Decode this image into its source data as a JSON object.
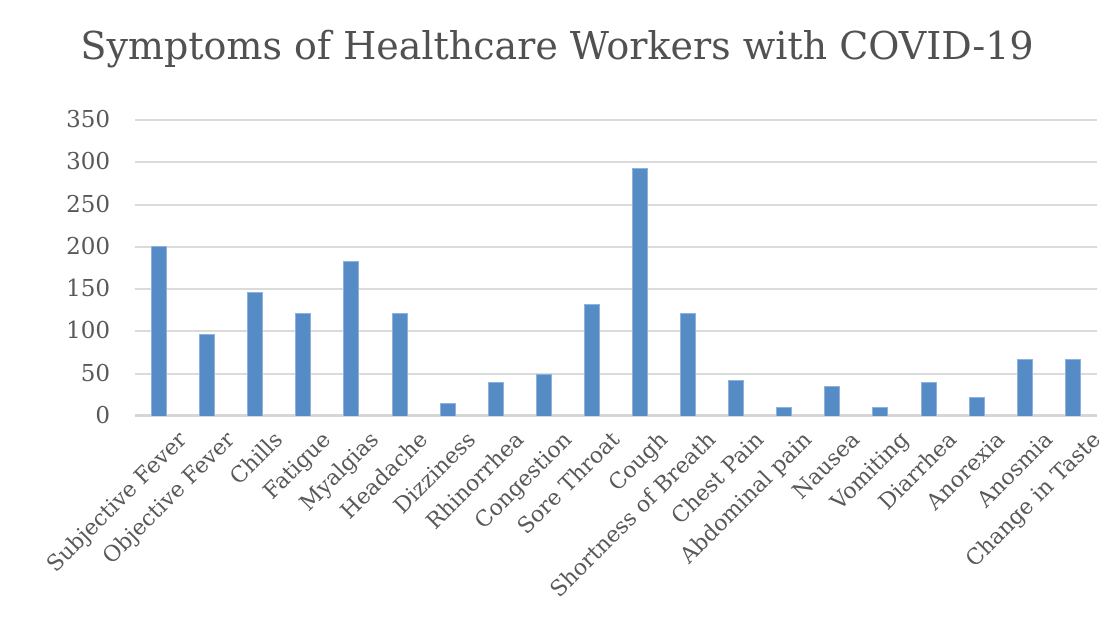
{
  "chart_data": {
    "type": "bar",
    "title": "Symptoms of Healthcare Workers with COVID-19",
    "xlabel": "",
    "ylabel": "",
    "categories": [
      "Subjective Fever",
      "Objective Fever",
      "Chills",
      "Fatigue",
      "Myalgias",
      "Headache",
      "Dizziness",
      "Rhinorrhea",
      "Congestion",
      "Sore Throat",
      "Cough",
      "Shortness of Breath",
      "Chest Pain",
      "Abdominal pain",
      "Nausea",
      "Vomiting",
      "Diarrhea",
      "Anorexia",
      "Anosmia",
      "Change in Taste"
    ],
    "values": [
      201,
      97,
      147,
      122,
      183,
      122,
      15,
      40,
      50,
      133,
      293,
      122,
      43,
      11,
      36,
      11,
      40,
      22,
      68,
      68
    ],
    "ylim": [
      0,
      350
    ],
    "yticks": [
      0,
      50,
      100,
      150,
      200,
      250,
      300,
      350
    ],
    "grid": "horizontal",
    "legend": "none",
    "x_label_rotation_deg": -45,
    "colors": {
      "bar_fill": "#558cc6",
      "bar_border": "#8fb2dc",
      "gridline": "#dbdbdb",
      "axis_line": "#d6d6d6",
      "tick_text": "#595959",
      "title_text": "#515151",
      "background": "#ffffff"
    }
  }
}
